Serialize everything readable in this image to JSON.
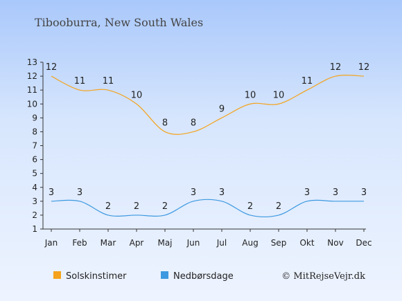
{
  "chart_data": {
    "type": "line",
    "title": "Tibooburra, New South Wales",
    "categories": [
      "Jan",
      "Feb",
      "Mar",
      "Apr",
      "Maj",
      "Jun",
      "Jul",
      "Aug",
      "Sep",
      "Okt",
      "Nov",
      "Dec"
    ],
    "series": [
      {
        "name": "Solskinstimer",
        "color": "#f5a31a",
        "values": [
          12,
          11,
          11,
          10,
          8,
          8,
          9,
          10,
          10,
          11,
          12,
          12
        ]
      },
      {
        "name": "Nedbørsdage",
        "color": "#3d99e0",
        "values": [
          3,
          3,
          2,
          2,
          2,
          3,
          3,
          2,
          2,
          3,
          3,
          3
        ]
      }
    ],
    "yticks": [
      1,
      2,
      3,
      4,
      5,
      6,
      7,
      8,
      9,
      10,
      11,
      12,
      13
    ],
    "ylim": [
      1,
      13
    ],
    "grid": false,
    "legend_position": "bottom-left"
  },
  "copyright": "© MitRejseVejr.dk"
}
